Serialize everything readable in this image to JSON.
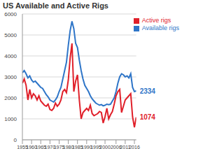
{
  "chart_data": {
    "type": "line",
    "title": "US Available and Active Rigs",
    "x": [
      1955,
      1956,
      1957,
      1958,
      1959,
      1960,
      1961,
      1962,
      1963,
      1964,
      1965,
      1966,
      1967,
      1968,
      1969,
      1970,
      1971,
      1972,
      1973,
      1974,
      1975,
      1976,
      1977,
      1978,
      1979,
      1980,
      1981,
      1982,
      1983,
      1984,
      1985,
      1986,
      1987,
      1988,
      1989,
      1990,
      1991,
      1992,
      1993,
      1994,
      1995,
      1996,
      1997,
      1998,
      1999,
      2000,
      2001,
      2002,
      2003,
      2004,
      2005,
      2006,
      2007,
      2008,
      2009,
      2010,
      2011,
      2012,
      2013,
      2014,
      2015,
      2016,
      2017
    ],
    "series": [
      {
        "name": "Available rigs",
        "color": "#2e75c8",
        "values": [
          3200,
          3300,
          3150,
          2950,
          3050,
          2850,
          2750,
          2800,
          2700,
          2600,
          2500,
          2450,
          2300,
          2150,
          2050,
          1900,
          1850,
          1800,
          1900,
          2050,
          2300,
          2500,
          2900,
          3300,
          3700,
          4500,
          5200,
          5650,
          5300,
          4600,
          4400,
          3800,
          3300,
          2900,
          2600,
          2450,
          2300,
          2100,
          1950,
          1850,
          1750,
          1700,
          1650,
          1680,
          1620,
          1650,
          1700,
          1680,
          1700,
          1850,
          2000,
          2300,
          2700,
          3000,
          3150,
          3100,
          3000,
          3050,
          2950,
          3150,
          2500,
          2300,
          2334
        ]
      },
      {
        "name": "Active rigs",
        "color": "#e0202a",
        "values": [
          2700,
          2900,
          2600,
          1900,
          2400,
          2000,
          2200,
          2100,
          1900,
          2100,
          1850,
          1750,
          1650,
          1600,
          1700,
          1450,
          1400,
          1500,
          1750,
          1600,
          1700,
          1900,
          2300,
          2400,
          2250,
          2850,
          3900,
          4600,
          2300,
          2800,
          3100,
          1900,
          1000,
          1300,
          1400,
          1500,
          1400,
          1650,
          1250,
          1150,
          1200,
          1250,
          1350,
          1300,
          800,
          1100,
          1500,
          1000,
          1200,
          1350,
          1700,
          2100,
          2300,
          2400,
          1300,
          1600,
          1900,
          2000,
          2100,
          2200,
          1100,
          600,
          1074
        ]
      }
    ],
    "xlim": [
      1955,
      2017
    ],
    "xticks": [
      1955,
      1960,
      1965,
      1970,
      1975,
      1980,
      1985,
      1990,
      1995,
      2000,
      2006,
      2011,
      2016
    ],
    "ylim": [
      0,
      6000
    ],
    "yticks": [
      0,
      1000,
      2000,
      3000,
      4000,
      5000,
      6000
    ],
    "grid": true,
    "legend": "upper right",
    "annotations": [
      {
        "text": "2334",
        "x": 2017,
        "y": 2334,
        "series": "Available rigs"
      },
      {
        "text": "1074",
        "x": 2017,
        "y": 1074,
        "series": "Active rigs"
      }
    ]
  }
}
